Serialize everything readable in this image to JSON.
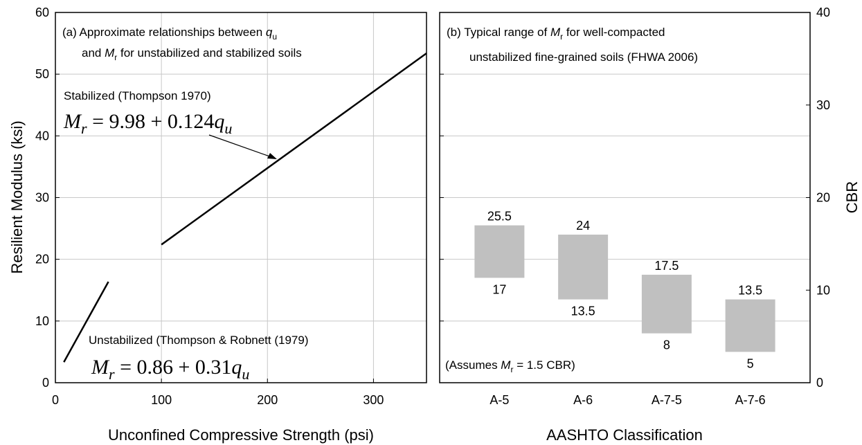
{
  "chart_data": [
    {
      "type": "line",
      "x_label": "Unconfined Compressive Strength (psi)",
      "y_label": "Resilient Modulus (ksi)",
      "xlim": [
        0,
        350
      ],
      "xticks": [
        0,
        100,
        200,
        300
      ],
      "ylim": [
        0,
        60
      ],
      "yticks": [
        0,
        10,
        20,
        30,
        40,
        50,
        60
      ],
      "grid": true,
      "title_lines": [
        [
          "(a) Approximate relationships between ",
          "q",
          "u"
        ],
        [
          "and ",
          "M",
          "r",
          " for unstabilized and stabilized soils"
        ]
      ],
      "equations": [
        [
          "M",
          "r",
          " = 9.98 + 0.124",
          "q",
          "u"
        ],
        [
          "M",
          "r",
          " = 0.86 + 0.31",
          "q",
          "u"
        ]
      ],
      "series": [
        {
          "name": "Stabilized (Thompson 1970)",
          "color": "#000000",
          "x": [
            100,
            350
          ],
          "values": [
            22.38,
            53.38
          ]
        },
        {
          "name": "Unstabilized (Thompson & Robnett (1979)",
          "color": "#000000",
          "x": [
            8,
            50
          ],
          "values": [
            3.34,
            16.36
          ]
        }
      ]
    },
    {
      "type": "range_bar",
      "x_label": "AASHTO Classification",
      "y2_label": "CBR",
      "categories": [
        "A-5",
        "A-6",
        "A-7-5",
        "A-7-6"
      ],
      "low": [
        17,
        13.5,
        8,
        5
      ],
      "high": [
        25.5,
        24,
        17.5,
        13.5
      ],
      "color": "#c0c0c0",
      "ylim": [
        0,
        60
      ],
      "yticks": [
        0,
        10,
        20,
        30,
        40,
        50,
        60
      ],
      "y2lim": [
        0,
        40
      ],
      "y2ticks": [
        0,
        10,
        20,
        30,
        40
      ],
      "grid": true,
      "title_lines": [
        [
          "(b) Typical range of ",
          "M",
          "r",
          " for well-compacted"
        ],
        [
          "unstabilized fine-grained soils (FHWA 2006)"
        ]
      ],
      "note": [
        "(Assumes ",
        "M",
        "r",
        " = 1.5 CBR)"
      ]
    }
  ]
}
